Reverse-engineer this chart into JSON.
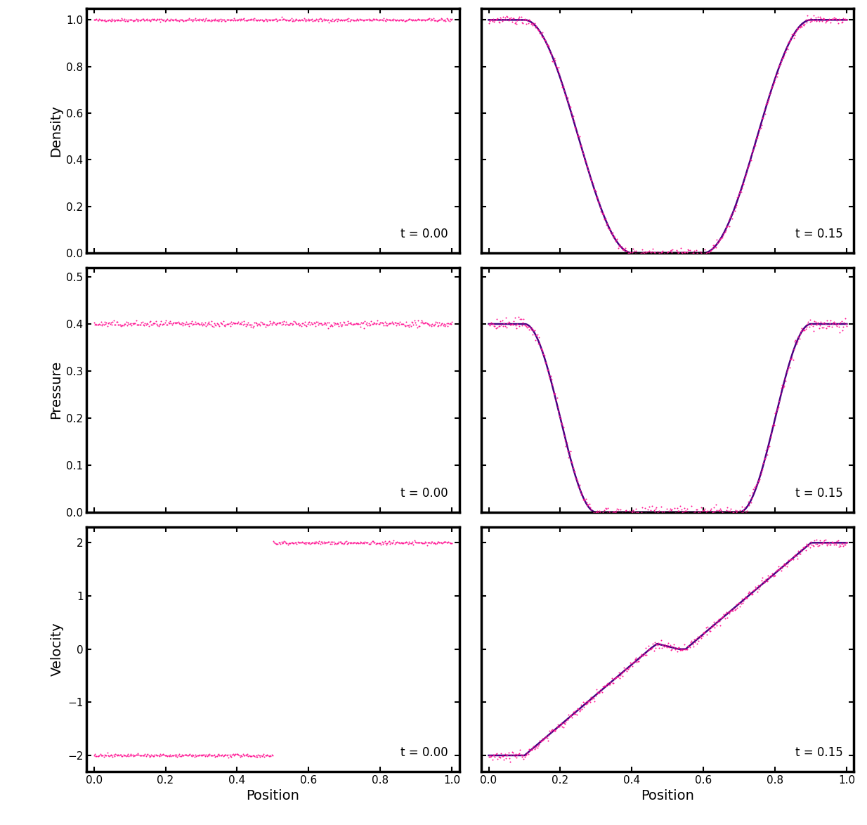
{
  "dot_color": "#FF1493",
  "line_color": "#4B0082",
  "fig_width": 12.34,
  "fig_height": 11.74,
  "dpi": 100,
  "t_left": "t = 0.00",
  "t_right": "t = 0.15",
  "ylabels": [
    "Density",
    "Pressure",
    "Velocity"
  ],
  "xlabel": "Position",
  "density_ylim": [
    0.0,
    1.05
  ],
  "pressure_ylim": [
    0.0,
    0.52
  ],
  "velocity_ylim": [
    -2.3,
    2.3
  ],
  "n_points": 400,
  "n_fine": 2000,
  "density_yticks": [
    0.0,
    0.2,
    0.4,
    0.6,
    0.8,
    1.0
  ],
  "pressure_yticks": [
    0.0,
    0.1,
    0.2,
    0.3,
    0.4,
    0.5
  ],
  "velocity_yticks": [
    -2,
    -1,
    0,
    1,
    2
  ],
  "xticks": [
    0.0,
    0.2,
    0.4,
    0.6,
    0.8,
    1.0
  ]
}
